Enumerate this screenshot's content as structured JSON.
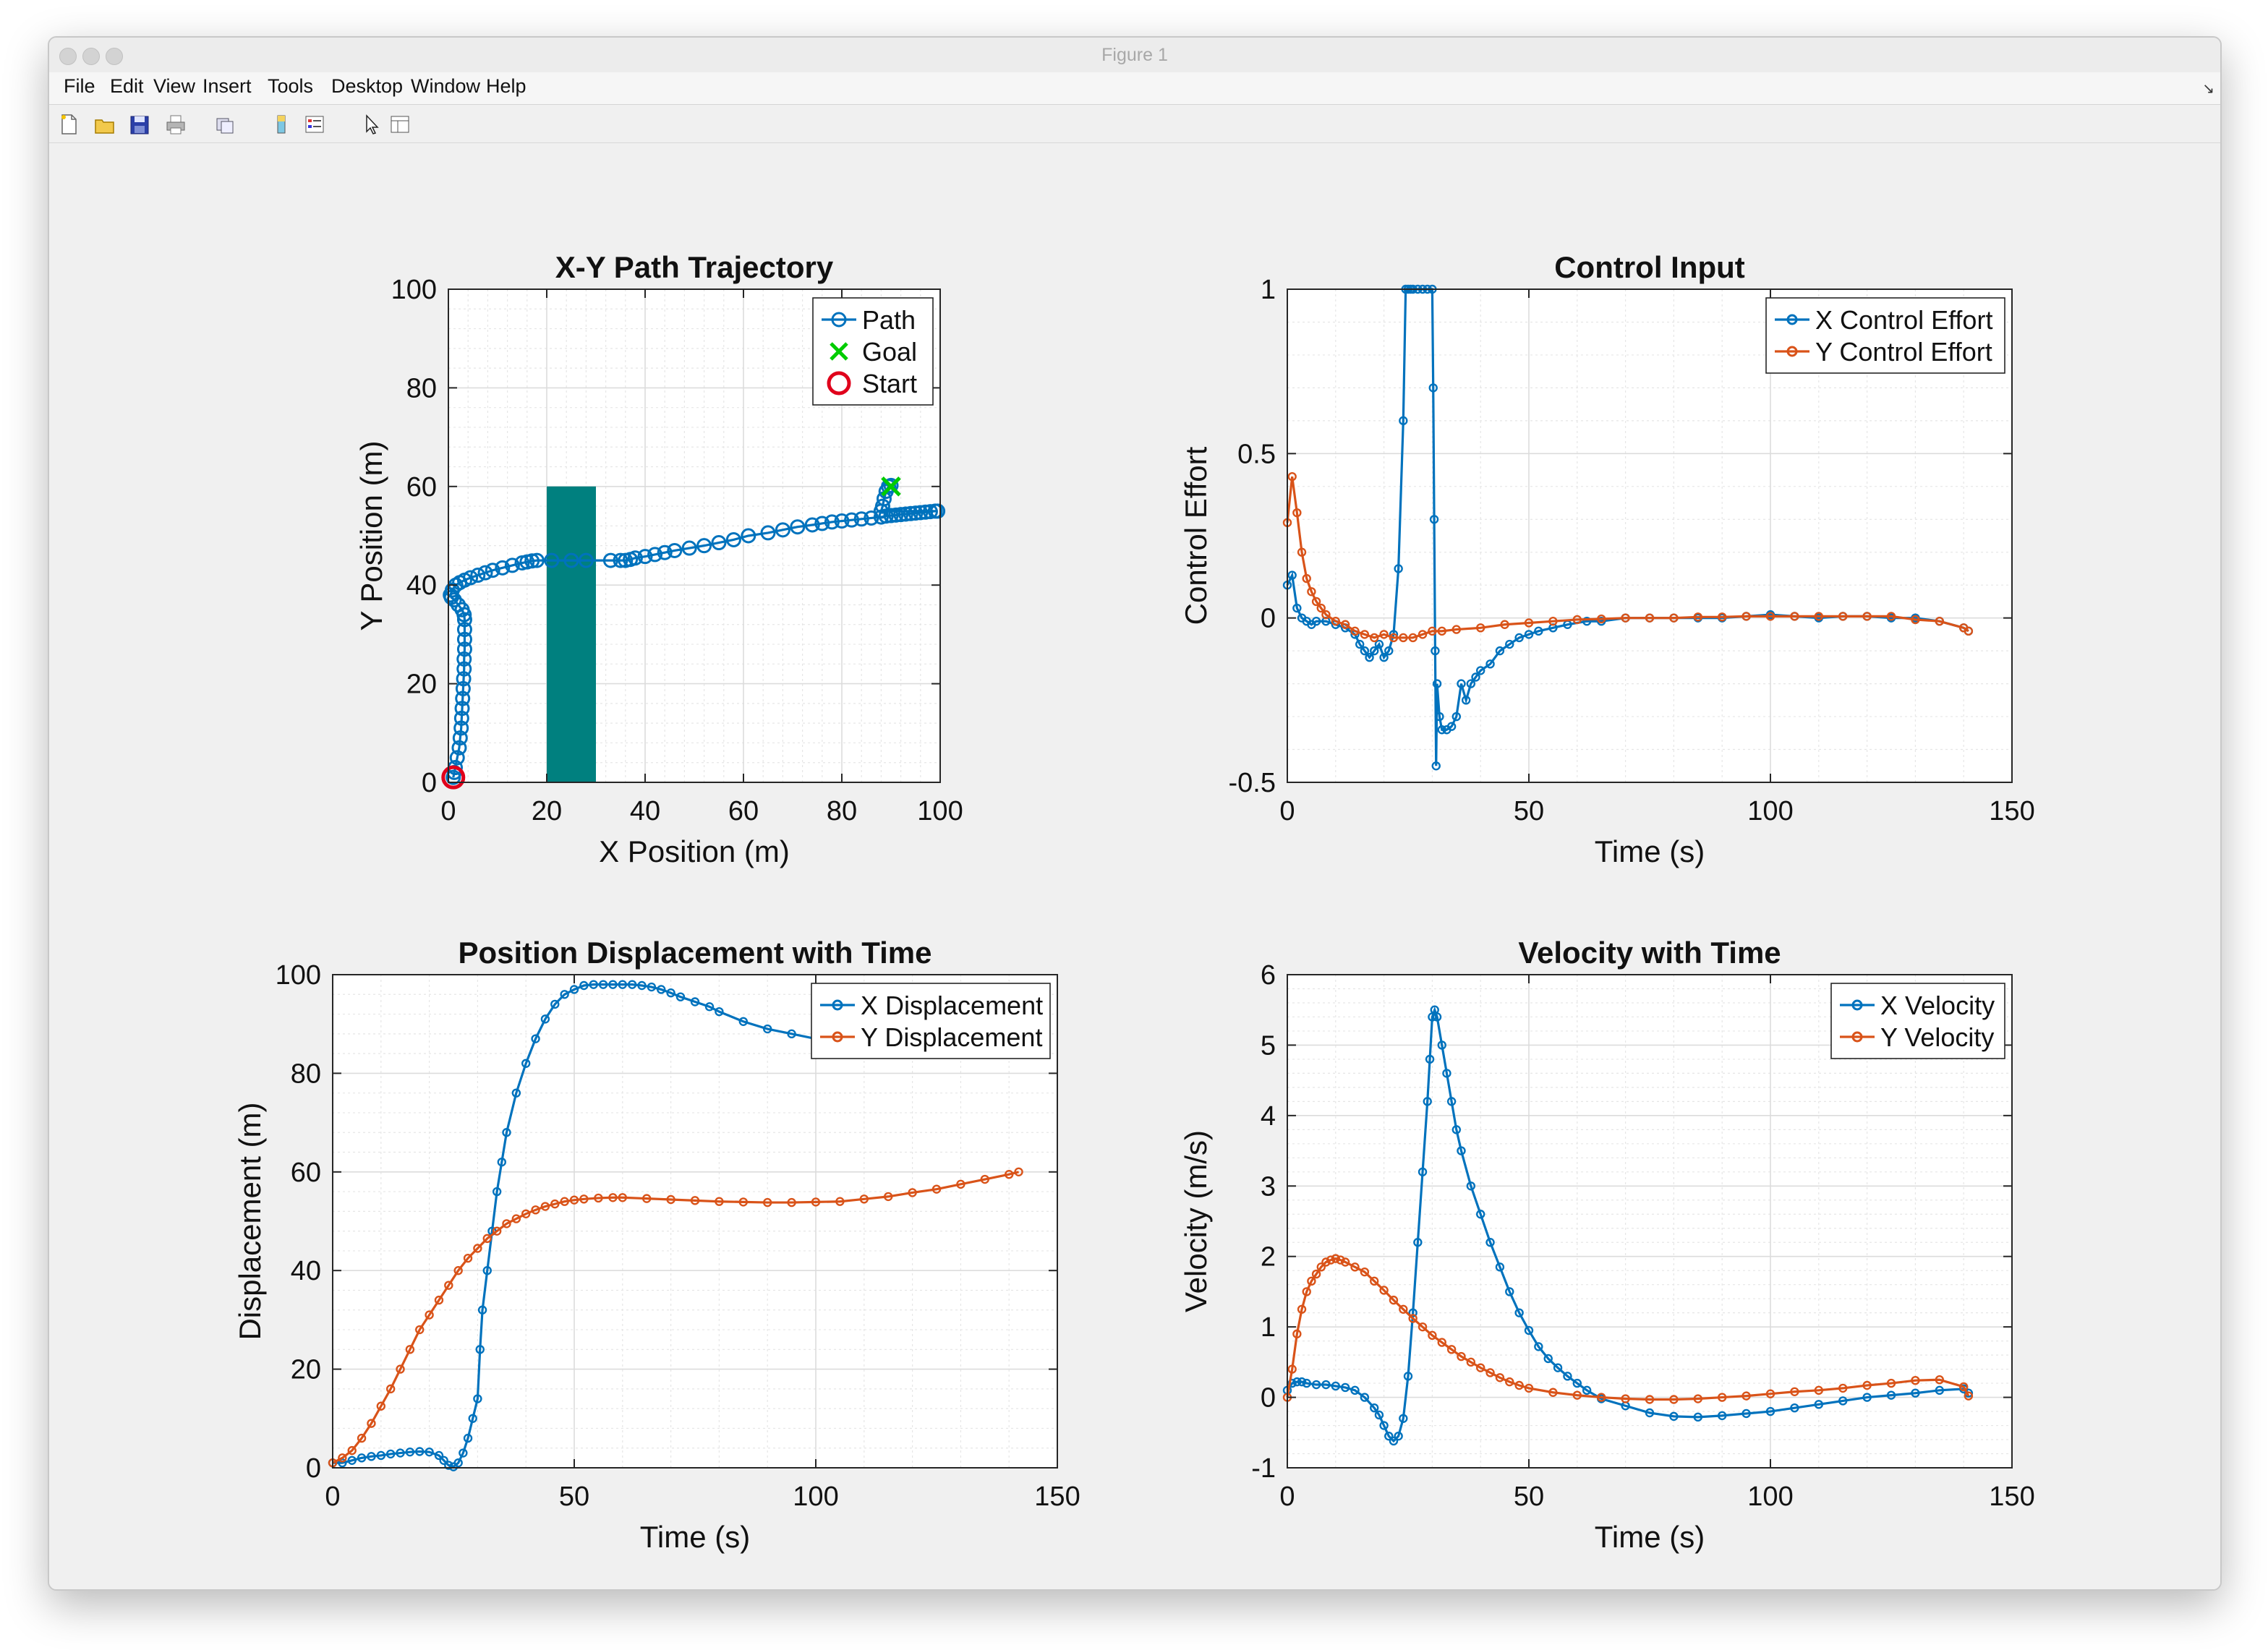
{
  "window": {
    "title": "Figure 1",
    "menu": [
      "File",
      "Edit",
      "View",
      "Insert",
      "Tools",
      "Desktop",
      "Window",
      "Help"
    ],
    "toolbar_icons": [
      "new-figure-icon",
      "open-file-icon",
      "save-icon",
      "print-icon",
      "link-icon",
      "colorbar-icon",
      "legend-icon",
      "pointer-icon",
      "property-inspector-icon"
    ]
  },
  "colors": {
    "blue": "#0072bd",
    "orange": "#d95319",
    "green": "#00cc00",
    "red": "#e0001b",
    "obstacle": "#00807f"
  },
  "chart_data": [
    {
      "id": "xy",
      "type": "line",
      "title": "X-Y Path Trajectory",
      "xlabel": "X Position (m)",
      "ylabel": "Y Position (m)",
      "xlim": [
        0,
        100
      ],
      "ylim": [
        0,
        100
      ],
      "xticks": [
        0,
        20,
        40,
        60,
        80,
        100
      ],
      "yticks": [
        0,
        20,
        40,
        60,
        80,
        100
      ],
      "xtick_labels": [
        "0",
        "20",
        "40",
        "60",
        "80",
        "100"
      ],
      "ytick_labels": [
        "0",
        "20",
        "40",
        "60",
        "80",
        "100"
      ],
      "grid": true,
      "legend_position": "top-right",
      "legend": [
        "Path",
        "Goal",
        "Start"
      ],
      "obstacle": {
        "x": [
          20,
          30
        ],
        "y": [
          0,
          60
        ]
      },
      "series": [
        {
          "name": "Path",
          "marker": "circle",
          "x": [
            1,
            1.2,
            1.4,
            1.8,
            2.2,
            2.4,
            2.6,
            2.7,
            2.8,
            2.9,
            3.0,
            3.1,
            3.2,
            3.2,
            3.3,
            3.3,
            3.3,
            3.3,
            3.2,
            2.8,
            2,
            1.2,
            0.6,
            0.4,
            0.8,
            1.5,
            2.3,
            3.3,
            4.5,
            6,
            7.5,
            9,
            11,
            13,
            15,
            16,
            17,
            18,
            21,
            25,
            28,
            33,
            35,
            36,
            37,
            38,
            40,
            42,
            44,
            46,
            49,
            52,
            55,
            58,
            61,
            65,
            68,
            71,
            74,
            76,
            78,
            80,
            82,
            84,
            86,
            88,
            89,
            90,
            91,
            92,
            93,
            94,
            95,
            96,
            97,
            98,
            99,
            99.5,
            88,
            88.3,
            88.6,
            89,
            89.5,
            90
          ],
          "y": [
            1,
            2,
            3,
            5,
            7,
            9,
            11,
            13,
            15,
            17,
            19,
            21,
            23,
            25,
            27,
            29,
            31,
            33,
            34,
            35,
            36,
            37,
            37.5,
            38,
            39,
            40,
            40.5,
            41,
            41.5,
            42,
            42.5,
            43,
            43.5,
            44,
            44.5,
            44.7,
            44.9,
            45,
            45,
            45,
            45,
            45,
            45,
            45,
            45.2,
            45.5,
            45.8,
            46.2,
            46.6,
            47,
            47.5,
            48,
            48.6,
            49.2,
            50,
            50.6,
            51.2,
            51.8,
            52.2,
            52.5,
            52.8,
            53,
            53.2,
            53.4,
            53.6,
            53.8,
            54,
            54.1,
            54.2,
            54.3,
            54.4,
            54.5,
            54.6,
            54.7,
            54.8,
            54.9,
            55,
            55,
            55,
            56,
            57.5,
            59,
            60,
            60.2
          ]
        },
        {
          "name": "Goal",
          "marker": "x",
          "x": [
            90
          ],
          "y": [
            60
          ]
        },
        {
          "name": "Start",
          "marker": "circle",
          "x": [
            1
          ],
          "y": [
            1
          ]
        }
      ]
    },
    {
      "id": "ctrl",
      "type": "line",
      "title": "Control Input",
      "xlabel": "Time (s)",
      "ylabel": "Control Effort",
      "xlim": [
        0,
        150
      ],
      "ylim": [
        -0.5,
        1
      ],
      "xticks": [
        0,
        50,
        100,
        150
      ],
      "yticks": [
        -0.5,
        0,
        0.5,
        1
      ],
      "xtick_labels": [
        "0",
        "50",
        "100",
        "150"
      ],
      "ytick_labels": [
        "-0.5",
        "0",
        "0.5",
        "1"
      ],
      "grid": true,
      "legend_position": "top-right",
      "legend": [
        "X Control Effort",
        "Y Control Effort"
      ],
      "series": [
        {
          "name": "X Control Effort",
          "x": [
            0,
            1,
            2,
            3,
            4,
            5,
            6,
            8,
            10,
            12,
            14,
            15,
            16,
            17,
            18,
            19,
            20,
            21,
            22,
            23,
            24,
            24.5,
            25,
            25.5,
            26,
            27,
            28,
            29,
            30,
            30.2,
            30.4,
            30.6,
            30.8,
            31,
            31.5,
            32,
            33,
            34,
            35,
            36,
            37,
            38,
            39,
            40,
            42,
            44,
            46,
            48,
            50,
            52,
            55,
            58,
            62,
            65,
            70,
            75,
            80,
            85,
            90,
            95,
            100,
            105,
            110,
            115,
            120,
            125,
            130,
            135,
            140,
            141
          ],
          "y": [
            0.1,
            0.13,
            0.03,
            0,
            -0.01,
            -0.02,
            -0.01,
            -0.01,
            -0.02,
            -0.03,
            -0.05,
            -0.08,
            -0.1,
            -0.12,
            -0.1,
            -0.08,
            -0.12,
            -0.1,
            -0.05,
            0.15,
            0.6,
            1,
            1,
            1,
            1,
            1,
            1,
            1,
            1,
            0.7,
            0.3,
            -0.1,
            -0.45,
            -0.2,
            -0.3,
            -0.34,
            -0.34,
            -0.33,
            -0.3,
            -0.2,
            -0.25,
            -0.2,
            -0.18,
            -0.16,
            -0.14,
            -0.1,
            -0.08,
            -0.06,
            -0.05,
            -0.04,
            -0.03,
            -0.02,
            -0.01,
            -0.01,
            0,
            0,
            0,
            0,
            0,
            0.005,
            0.01,
            0.005,
            0,
            0.005,
            0.005,
            0,
            0,
            -0.01,
            -0.03,
            -0.04
          ]
        },
        {
          "name": "Y Control Effort",
          "x": [
            0,
            1,
            2,
            3,
            4,
            5,
            6,
            7,
            8,
            10,
            12,
            14,
            16,
            18,
            20,
            22,
            24,
            26,
            28,
            30,
            32,
            35,
            40,
            45,
            50,
            55,
            60,
            65,
            70,
            75,
            80,
            85,
            90,
            95,
            100,
            105,
            110,
            115,
            120,
            125,
            130,
            135,
            140,
            141
          ],
          "y": [
            0.29,
            0.43,
            0.32,
            0.2,
            0.12,
            0.08,
            0.05,
            0.03,
            0.01,
            -0.01,
            -0.02,
            -0.04,
            -0.05,
            -0.06,
            -0.05,
            -0.06,
            -0.06,
            -0.06,
            -0.05,
            -0.04,
            -0.04,
            -0.035,
            -0.03,
            -0.02,
            -0.015,
            -0.01,
            -0.005,
            -0.003,
            0,
            0,
            0,
            0.003,
            0.003,
            0.005,
            0.005,
            0.005,
            0.005,
            0.005,
            0.005,
            0.005,
            -0.005,
            -0.01,
            -0.03,
            -0.04
          ]
        }
      ]
    },
    {
      "id": "disp",
      "type": "line",
      "title": "Position Displacement with Time",
      "xlabel": "Time (s)",
      "ylabel": "Displacement (m)",
      "xlim": [
        0,
        150
      ],
      "ylim": [
        0,
        100
      ],
      "xticks": [
        0,
        50,
        100,
        150
      ],
      "yticks": [
        0,
        20,
        40,
        60,
        80,
        100
      ],
      "xtick_labels": [
        "0",
        "50",
        "100",
        "150"
      ],
      "ytick_labels": [
        "0",
        "20",
        "40",
        "60",
        "80",
        "100"
      ],
      "grid": true,
      "legend_position": "top-right",
      "legend": [
        "X Displacement",
        "Y Displacement"
      ],
      "series": [
        {
          "name": "X Displacement",
          "x": [
            0,
            2,
            4,
            6,
            8,
            10,
            12,
            14,
            16,
            18,
            20,
            22,
            23,
            24,
            25,
            26,
            27,
            28,
            29,
            30,
            30.5,
            31,
            32,
            33,
            34,
            35,
            36,
            38,
            40,
            42,
            44,
            46,
            48,
            50,
            52,
            54,
            56,
            58,
            60,
            62,
            64,
            66,
            68,
            70,
            72,
            75,
            78,
            80,
            85,
            90,
            95,
            100,
            105,
            110,
            115,
            120,
            125,
            130,
            135,
            140,
            142
          ],
          "y": [
            1,
            1,
            1.5,
            2,
            2.3,
            2.5,
            2.8,
            3,
            3.2,
            3.3,
            3.2,
            2.5,
            1.5,
            0.5,
            0.2,
            1,
            3,
            6,
            10,
            14,
            24,
            32,
            40,
            48,
            56,
            62,
            68,
            76,
            82,
            87,
            91,
            94,
            96,
            97,
            97.8,
            98,
            98,
            98,
            98,
            98,
            97.8,
            97.5,
            97,
            96.3,
            95.5,
            94.5,
            93.5,
            92.5,
            90.5,
            89,
            88,
            87,
            86,
            85.5,
            85,
            85,
            85,
            85,
            85,
            85,
            85
          ]
        },
        {
          "name": "Y Displacement",
          "x": [
            0,
            2,
            4,
            6,
            8,
            10,
            12,
            14,
            16,
            18,
            20,
            22,
            24,
            26,
            28,
            30,
            32,
            34,
            36,
            38,
            40,
            42,
            44,
            46,
            48,
            50,
            52,
            55,
            58,
            60,
            65,
            70,
            75,
            80,
            85,
            90,
            95,
            100,
            105,
            110,
            115,
            120,
            125,
            130,
            135,
            140,
            142
          ],
          "y": [
            1,
            2,
            3.5,
            6,
            9,
            12.5,
            16,
            20,
            24,
            28,
            31,
            34,
            37,
            40,
            42.5,
            44.5,
            46.5,
            48,
            49.5,
            50.5,
            51.5,
            52.3,
            53,
            53.5,
            54,
            54.3,
            54.5,
            54.7,
            54.8,
            54.8,
            54.6,
            54.4,
            54.2,
            54,
            53.9,
            53.8,
            53.8,
            53.9,
            54,
            54.5,
            55,
            55.8,
            56.5,
            57.5,
            58.5,
            59.5,
            60
          ]
        }
      ]
    },
    {
      "id": "vel",
      "type": "line",
      "title": "Velocity with Time",
      "xlabel": "Time (s)",
      "ylabel": "Velocity (m/s)",
      "xlim": [
        0,
        150
      ],
      "ylim": [
        -1,
        6
      ],
      "xticks": [
        0,
        50,
        100,
        150
      ],
      "yticks": [
        -1,
        0,
        1,
        2,
        3,
        4,
        5,
        6
      ],
      "xtick_labels": [
        "0",
        "50",
        "100",
        "150"
      ],
      "ytick_labels": [
        "-1",
        "0",
        "1",
        "2",
        "3",
        "4",
        "5",
        "6"
      ],
      "grid": true,
      "legend_position": "top-right",
      "legend": [
        "X Velocity",
        "Y Velocity"
      ],
      "series": [
        {
          "name": "X Velocity",
          "x": [
            0,
            1,
            2,
            3,
            4,
            6,
            8,
            10,
            12,
            14,
            16,
            18,
            19,
            20,
            21,
            22,
            23,
            24,
            25,
            26,
            27,
            28,
            29,
            29.5,
            30,
            30.5,
            31,
            32,
            33,
            34,
            35,
            36,
            38,
            40,
            42,
            44,
            46,
            48,
            50,
            52,
            54,
            56,
            58,
            60,
            62,
            65,
            70,
            75,
            80,
            85,
            90,
            95,
            100,
            105,
            110,
            115,
            120,
            125,
            130,
            135,
            140,
            141
          ],
          "y": [
            0.1,
            0.2,
            0.22,
            0.22,
            0.2,
            0.18,
            0.18,
            0.16,
            0.14,
            0.1,
            0,
            -0.15,
            -0.25,
            -0.4,
            -0.55,
            -0.62,
            -0.55,
            -0.3,
            0.3,
            1.2,
            2.2,
            3.2,
            4.2,
            4.8,
            5.4,
            5.5,
            5.4,
            5.0,
            4.6,
            4.2,
            3.8,
            3.5,
            3.0,
            2.6,
            2.2,
            1.85,
            1.5,
            1.2,
            0.95,
            0.72,
            0.55,
            0.42,
            0.3,
            0.2,
            0.1,
            -0.02,
            -0.12,
            -0.22,
            -0.27,
            -0.28,
            -0.26,
            -0.23,
            -0.2,
            -0.15,
            -0.1,
            -0.05,
            0,
            0.03,
            0.06,
            0.1,
            0.12,
            0.06
          ]
        },
        {
          "name": "Y Velocity",
          "x": [
            0,
            1,
            2,
            3,
            4,
            5,
            6,
            7,
            8,
            9,
            10,
            11,
            12,
            14,
            16,
            18,
            20,
            22,
            24,
            26,
            28,
            30,
            32,
            34,
            36,
            38,
            40,
            42,
            44,
            46,
            48,
            50,
            55,
            60,
            65,
            70,
            75,
            80,
            85,
            90,
            95,
            100,
            105,
            110,
            115,
            120,
            125,
            130,
            135,
            140,
            141
          ],
          "y": [
            0,
            0.4,
            0.9,
            1.25,
            1.5,
            1.65,
            1.75,
            1.85,
            1.92,
            1.95,
            1.97,
            1.95,
            1.92,
            1.85,
            1.78,
            1.65,
            1.52,
            1.38,
            1.25,
            1.12,
            1.0,
            0.88,
            0.78,
            0.68,
            0.58,
            0.5,
            0.42,
            0.35,
            0.28,
            0.22,
            0.17,
            0.13,
            0.07,
            0.03,
            0,
            -0.02,
            -0.03,
            -0.03,
            -0.02,
            0,
            0.02,
            0.05,
            0.08,
            0.1,
            0.13,
            0.17,
            0.2,
            0.24,
            0.25,
            0.15,
            0.02
          ]
        }
      ]
    }
  ]
}
